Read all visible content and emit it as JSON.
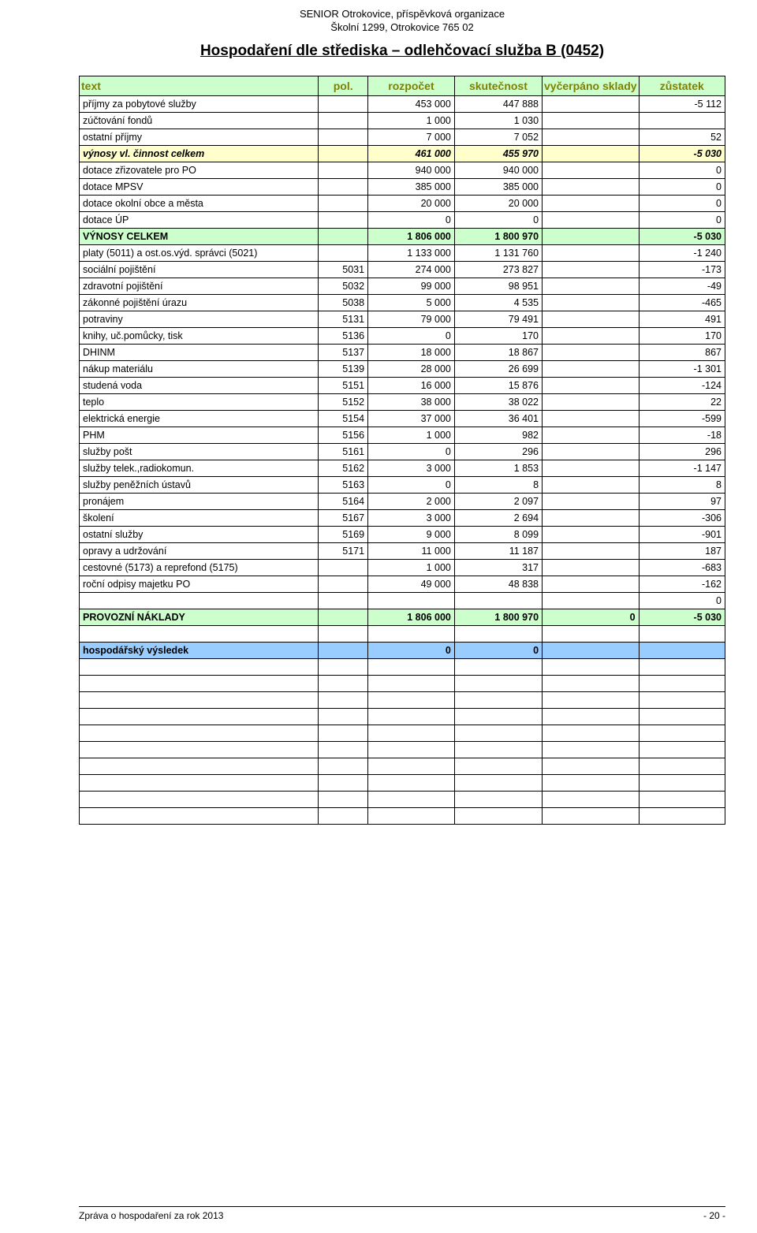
{
  "header": {
    "org_line1": "SENIOR Otrokovice, příspěvková organizace",
    "org_line2": "Školní 1299, Otrokovice 765 02",
    "title": "Hospodaření dle střediska – odlehčovací služba B (0452)"
  },
  "columns": {
    "text": "text",
    "pol": "pol.",
    "rozpocet": "rozpočet",
    "skutecnost": "skutečnost",
    "vycerpano": "vyčerpáno sklady",
    "zustatek": "zůstatek"
  },
  "rows": [
    {
      "cls": "",
      "text": "příjmy za pobytové služby",
      "pol": "",
      "rozpocet": "453 000",
      "skutecnost": "447 888",
      "vycerpano": "",
      "zustatek": "-5 112"
    },
    {
      "cls": "",
      "text": "zúčtování fondů",
      "pol": "",
      "rozpocet": "1 000",
      "skutecnost": "1 030",
      "vycerpano": "",
      "zustatek": ""
    },
    {
      "cls": "",
      "text": "ostatní příjmy",
      "pol": "",
      "rozpocet": "7 000",
      "skutecnost": "7 052",
      "vycerpano": "",
      "zustatek": "52"
    },
    {
      "cls": "yellow-row",
      "text": "výnosy vl. činnost celkem",
      "pol": "",
      "rozpocet": "461 000",
      "skutecnost": "455 970",
      "vycerpano": "",
      "zustatek": "-5 030"
    },
    {
      "cls": "",
      "text": "dotace zřizovatele pro PO",
      "pol": "",
      "rozpocet": "940 000",
      "skutecnost": "940 000",
      "vycerpano": "",
      "zustatek": "0"
    },
    {
      "cls": "",
      "text": "dotace MPSV",
      "pol": "",
      "rozpocet": "385 000",
      "skutecnost": "385 000",
      "vycerpano": "",
      "zustatek": "0"
    },
    {
      "cls": "",
      "text": "dotace okolní obce a města",
      "pol": "",
      "rozpocet": "20 000",
      "skutecnost": "20 000",
      "vycerpano": "",
      "zustatek": "0"
    },
    {
      "cls": "",
      "text": "dotace ÚP",
      "pol": "",
      "rozpocet": "0",
      "skutecnost": "0",
      "vycerpano": "",
      "zustatek": "0"
    },
    {
      "cls": "green-row",
      "text": "VÝNOSY CELKEM",
      "pol": "",
      "rozpocet": "1 806 000",
      "skutecnost": "1 800 970",
      "vycerpano": "",
      "zustatek": "-5 030"
    },
    {
      "cls": "",
      "text": "platy (5011) a ost.os.výd. správci (5021)",
      "pol": "",
      "rozpocet": "1 133 000",
      "skutecnost": "1 131 760",
      "vycerpano": "",
      "zustatek": "-1 240"
    },
    {
      "cls": "",
      "text": "sociální pojištění",
      "pol": "5031",
      "rozpocet": "274 000",
      "skutecnost": "273 827",
      "vycerpano": "",
      "zustatek": "-173"
    },
    {
      "cls": "",
      "text": "zdravotní pojištění",
      "pol": "5032",
      "rozpocet": "99 000",
      "skutecnost": "98 951",
      "vycerpano": "",
      "zustatek": "-49"
    },
    {
      "cls": "",
      "text": "zákonné pojištění úrazu",
      "pol": "5038",
      "rozpocet": "5 000",
      "skutecnost": "4 535",
      "vycerpano": "",
      "zustatek": "-465"
    },
    {
      "cls": "",
      "text": "potraviny",
      "pol": "5131",
      "rozpocet": "79 000",
      "skutecnost": "79 491",
      "vycerpano": "",
      "zustatek": "491"
    },
    {
      "cls": "",
      "text": "knihy, uč.pomůcky, tisk",
      "pol": "5136",
      "rozpocet": "0",
      "skutecnost": "170",
      "vycerpano": "",
      "zustatek": "170"
    },
    {
      "cls": "",
      "text": "DHINM",
      "pol": "5137",
      "rozpocet": "18 000",
      "skutecnost": "18 867",
      "vycerpano": "",
      "zustatek": "867"
    },
    {
      "cls": "",
      "text": "nákup materiálu",
      "pol": "5139",
      "rozpocet": "28 000",
      "skutecnost": "26 699",
      "vycerpano": "",
      "zustatek": "-1 301"
    },
    {
      "cls": "",
      "text": "studená voda",
      "pol": "5151",
      "rozpocet": "16 000",
      "skutecnost": "15 876",
      "vycerpano": "",
      "zustatek": "-124"
    },
    {
      "cls": "",
      "text": "teplo",
      "pol": "5152",
      "rozpocet": "38 000",
      "skutecnost": "38 022",
      "vycerpano": "",
      "zustatek": "22"
    },
    {
      "cls": "",
      "text": "elektrická energie",
      "pol": "5154",
      "rozpocet": "37 000",
      "skutecnost": "36 401",
      "vycerpano": "",
      "zustatek": "-599"
    },
    {
      "cls": "",
      "text": "PHM",
      "pol": "5156",
      "rozpocet": "1 000",
      "skutecnost": "982",
      "vycerpano": "",
      "zustatek": "-18"
    },
    {
      "cls": "",
      "text": "služby pošt",
      "pol": "5161",
      "rozpocet": "0",
      "skutecnost": "296",
      "vycerpano": "",
      "zustatek": "296"
    },
    {
      "cls": "",
      "text": "služby telek.,radiokomun.",
      "pol": "5162",
      "rozpocet": "3 000",
      "skutecnost": "1 853",
      "vycerpano": "",
      "zustatek": "-1 147"
    },
    {
      "cls": "",
      "text": "služby peněžních ústavů",
      "pol": "5163",
      "rozpocet": "0",
      "skutecnost": "8",
      "vycerpano": "",
      "zustatek": "8"
    },
    {
      "cls": "",
      "text": "pronájem",
      "pol": "5164",
      "rozpocet": "2 000",
      "skutecnost": "2 097",
      "vycerpano": "",
      "zustatek": "97"
    },
    {
      "cls": "",
      "text": "školení",
      "pol": "5167",
      "rozpocet": "3 000",
      "skutecnost": "2 694",
      "vycerpano": "",
      "zustatek": "-306"
    },
    {
      "cls": "",
      "text": "ostatní služby",
      "pol": "5169",
      "rozpocet": "9 000",
      "skutecnost": "8 099",
      "vycerpano": "",
      "zustatek": "-901"
    },
    {
      "cls": "",
      "text": "opravy a udržování",
      "pol": "5171",
      "rozpocet": "11 000",
      "skutecnost": "11 187",
      "vycerpano": "",
      "zustatek": "187"
    },
    {
      "cls": "",
      "text": "cestovné (5173) a reprefond (5175)",
      "pol": "",
      "rozpocet": "1 000",
      "skutecnost": "317",
      "vycerpano": "",
      "zustatek": "-683"
    },
    {
      "cls": "",
      "text": "roční odpisy majetku PO",
      "pol": "",
      "rozpocet": "49 000",
      "skutecnost": "48 838",
      "vycerpano": "",
      "zustatek": "-162"
    },
    {
      "cls": "",
      "text": "",
      "pol": "",
      "rozpocet": "",
      "skutecnost": "",
      "vycerpano": "",
      "zustatek": "0"
    },
    {
      "cls": "green-row",
      "text": "PROVOZNÍ NÁKLADY",
      "pol": "",
      "rozpocet": "1 806 000",
      "skutecnost": "1 800 970",
      "vycerpano": "0",
      "zustatek": "-5 030"
    },
    {
      "cls": "",
      "text": "",
      "pol": "",
      "rozpocet": "",
      "skutecnost": "",
      "vycerpano": "",
      "zustatek": ""
    },
    {
      "cls": "blue-row",
      "text": "hospodářský výsledek",
      "pol": "",
      "rozpocet": "0",
      "skutecnost": "0",
      "vycerpano": "",
      "zustatek": ""
    },
    {
      "cls": "",
      "text": "",
      "pol": "",
      "rozpocet": "",
      "skutecnost": "",
      "vycerpano": "",
      "zustatek": ""
    },
    {
      "cls": "",
      "text": "",
      "pol": "",
      "rozpocet": "",
      "skutecnost": "",
      "vycerpano": "",
      "zustatek": ""
    },
    {
      "cls": "",
      "text": "",
      "pol": "",
      "rozpocet": "",
      "skutecnost": "",
      "vycerpano": "",
      "zustatek": ""
    },
    {
      "cls": "",
      "text": "",
      "pol": "",
      "rozpocet": "",
      "skutecnost": "",
      "vycerpano": "",
      "zustatek": ""
    },
    {
      "cls": "",
      "text": "",
      "pol": "",
      "rozpocet": "",
      "skutecnost": "",
      "vycerpano": "",
      "zustatek": ""
    },
    {
      "cls": "",
      "text": "",
      "pol": "",
      "rozpocet": "",
      "skutecnost": "",
      "vycerpano": "",
      "zustatek": ""
    },
    {
      "cls": "",
      "text": "",
      "pol": "",
      "rozpocet": "",
      "skutecnost": "",
      "vycerpano": "",
      "zustatek": ""
    },
    {
      "cls": "",
      "text": "",
      "pol": "",
      "rozpocet": "",
      "skutecnost": "",
      "vycerpano": "",
      "zustatek": ""
    },
    {
      "cls": "",
      "text": "",
      "pol": "",
      "rozpocet": "",
      "skutecnost": "",
      "vycerpano": "",
      "zustatek": ""
    },
    {
      "cls": "",
      "text": "",
      "pol": "",
      "rozpocet": "",
      "skutecnost": "",
      "vycerpano": "",
      "zustatek": ""
    }
  ],
  "footer": {
    "left": "Zpráva o hospodaření za rok 2013",
    "right": "- 20 -"
  },
  "style": {
    "header_bg": "#ccffcc",
    "yellow_bg": "#ffffcc",
    "green_bg": "#ccffcc",
    "blue_bg": "#99ccff",
    "header_text_color": "#808000"
  }
}
